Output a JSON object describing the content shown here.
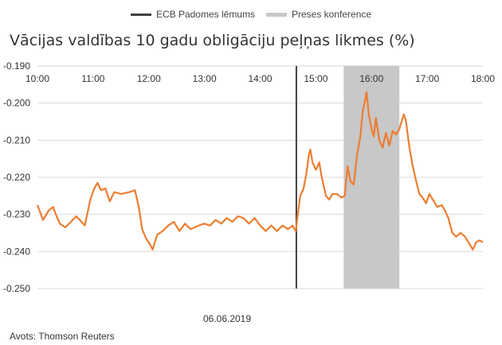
{
  "chart_data": {
    "type": "line",
    "title": "Vācijas valdības 10 gadu obligāciju peļņas likmes (%)",
    "xlabel": "06.06.2019",
    "ylabel": "",
    "x_ticks": [
      "10:00",
      "11:00",
      "12:00",
      "13:00",
      "14:00",
      "15:00",
      "16:00",
      "17:00",
      "18:00"
    ],
    "y_ticks": [
      "-0.190",
      "-0.200",
      "-0.210",
      "-0.220",
      "-0.230",
      "-0.240",
      "-0.250"
    ],
    "ylim": [
      -0.25,
      -0.19
    ],
    "xlim_hours": [
      10,
      18
    ],
    "grid": "horizontal",
    "legend_position": "top-center",
    "series": [
      {
        "name": "",
        "color": "#ed7d31",
        "points": [
          [
            10.0,
            -0.2275
          ],
          [
            10.1,
            -0.2315
          ],
          [
            10.2,
            -0.229
          ],
          [
            10.28,
            -0.228
          ],
          [
            10.33,
            -0.23
          ],
          [
            10.4,
            -0.2325
          ],
          [
            10.5,
            -0.2335
          ],
          [
            10.6,
            -0.232
          ],
          [
            10.7,
            -0.2305
          ],
          [
            10.85,
            -0.233
          ],
          [
            10.95,
            -0.226
          ],
          [
            11.02,
            -0.223
          ],
          [
            11.08,
            -0.2215
          ],
          [
            11.14,
            -0.2235
          ],
          [
            11.22,
            -0.223
          ],
          [
            11.3,
            -0.2265
          ],
          [
            11.38,
            -0.224
          ],
          [
            11.5,
            -0.2245
          ],
          [
            11.65,
            -0.224
          ],
          [
            11.75,
            -0.2235
          ],
          [
            11.82,
            -0.228
          ],
          [
            11.88,
            -0.234
          ],
          [
            11.95,
            -0.2365
          ],
          [
            12.02,
            -0.238
          ],
          [
            12.07,
            -0.2395
          ],
          [
            12.15,
            -0.2355
          ],
          [
            12.25,
            -0.2345
          ],
          [
            12.35,
            -0.233
          ],
          [
            12.45,
            -0.232
          ],
          [
            12.55,
            -0.2345
          ],
          [
            12.65,
            -0.2325
          ],
          [
            12.75,
            -0.234
          ],
          [
            12.9,
            -0.233
          ],
          [
            13.0,
            -0.2325
          ],
          [
            13.1,
            -0.233
          ],
          [
            13.2,
            -0.2315
          ],
          [
            13.3,
            -0.2325
          ],
          [
            13.4,
            -0.231
          ],
          [
            13.5,
            -0.232
          ],
          [
            13.6,
            -0.2305
          ],
          [
            13.7,
            -0.231
          ],
          [
            13.8,
            -0.2325
          ],
          [
            13.9,
            -0.231
          ],
          [
            14.0,
            -0.233
          ],
          [
            14.1,
            -0.2345
          ],
          [
            14.2,
            -0.233
          ],
          [
            14.3,
            -0.2345
          ],
          [
            14.4,
            -0.233
          ],
          [
            14.5,
            -0.234
          ],
          [
            14.58,
            -0.233
          ],
          [
            14.64,
            -0.2345
          ],
          [
            14.66,
            -0.232
          ],
          [
            14.72,
            -0.225
          ],
          [
            14.78,
            -0.223
          ],
          [
            14.83,
            -0.219
          ],
          [
            14.87,
            -0.2145
          ],
          [
            14.9,
            -0.2125
          ],
          [
            14.94,
            -0.216
          ],
          [
            15.0,
            -0.218
          ],
          [
            15.06,
            -0.216
          ],
          [
            15.1,
            -0.2195
          ],
          [
            15.18,
            -0.225
          ],
          [
            15.24,
            -0.226
          ],
          [
            15.3,
            -0.2245
          ],
          [
            15.38,
            -0.2245
          ],
          [
            15.46,
            -0.2255
          ],
          [
            15.52,
            -0.225
          ],
          [
            15.57,
            -0.217
          ],
          [
            15.62,
            -0.221
          ],
          [
            15.68,
            -0.222
          ],
          [
            15.74,
            -0.214
          ],
          [
            15.8,
            -0.209
          ],
          [
            15.84,
            -0.2025
          ],
          [
            15.88,
            -0.1995
          ],
          [
            15.91,
            -0.197
          ],
          [
            15.95,
            -0.203
          ],
          [
            16.0,
            -0.207
          ],
          [
            16.04,
            -0.209
          ],
          [
            16.08,
            -0.204
          ],
          [
            16.14,
            -0.21
          ],
          [
            16.2,
            -0.212
          ],
          [
            16.26,
            -0.208
          ],
          [
            16.32,
            -0.2115
          ],
          [
            16.38,
            -0.2075
          ],
          [
            16.44,
            -0.2085
          ],
          [
            16.5,
            -0.207
          ],
          [
            16.55,
            -0.2045
          ],
          [
            16.58,
            -0.203
          ],
          [
            16.62,
            -0.205
          ],
          [
            16.68,
            -0.212
          ],
          [
            16.74,
            -0.217
          ],
          [
            16.8,
            -0.221
          ],
          [
            16.86,
            -0.2245
          ],
          [
            16.92,
            -0.2255
          ],
          [
            16.98,
            -0.227
          ],
          [
            17.04,
            -0.2245
          ],
          [
            17.1,
            -0.226
          ],
          [
            17.18,
            -0.228
          ],
          [
            17.26,
            -0.2275
          ],
          [
            17.32,
            -0.229
          ],
          [
            17.38,
            -0.231
          ],
          [
            17.45,
            -0.235
          ],
          [
            17.52,
            -0.236
          ],
          [
            17.6,
            -0.235
          ],
          [
            17.68,
            -0.236
          ],
          [
            17.76,
            -0.238
          ],
          [
            17.82,
            -0.2395
          ],
          [
            17.88,
            -0.2375
          ],
          [
            17.94,
            -0.237
          ],
          [
            18.0,
            -0.2375
          ]
        ]
      }
    ],
    "vertical_line": {
      "name": "ECB Padomes lēmums",
      "x": 14.65,
      "color": "#404040"
    },
    "shaded_range": {
      "name": "Preses konference",
      "x0": 15.5,
      "x1": 16.5,
      "color": "#c8c8c8"
    }
  },
  "legend": [
    {
      "label": "ECB Padomes lēmums",
      "color": "#404040",
      "kind": "line"
    },
    {
      "label": "Preses konference",
      "color": "#c8c8c8",
      "kind": "band"
    }
  ],
  "title": "Vācijas valdības 10 gadu obligāciju peļņas likmes (%)",
  "date": "06.06.2019",
  "source": "Avots: Thomson Reuters"
}
